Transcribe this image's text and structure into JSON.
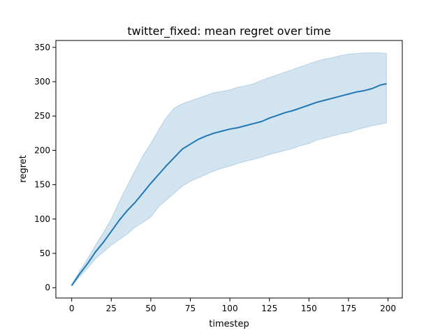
{
  "chart_data": {
    "type": "line",
    "title": "twitter_fixed: mean regret over time",
    "xlabel": "timestep",
    "ylabel": "regret",
    "xlim": [
      -10,
      209
    ],
    "ylim": [
      -15,
      360
    ],
    "xticks": [
      0,
      25,
      50,
      75,
      100,
      125,
      150,
      175,
      200
    ],
    "yticks": [
      0,
      50,
      100,
      150,
      200,
      250,
      300,
      350
    ],
    "grid": false,
    "legend": "none",
    "series": [
      {
        "color": "#1f77b4",
        "band_color": "#1f77b4",
        "x": [
          0,
          5,
          10,
          15,
          20,
          25,
          30,
          35,
          40,
          45,
          50,
          55,
          60,
          65,
          70,
          75,
          80,
          85,
          90,
          95,
          100,
          105,
          110,
          115,
          120,
          125,
          130,
          135,
          140,
          145,
          150,
          155,
          160,
          165,
          170,
          175,
          180,
          185,
          190,
          195,
          199
        ],
        "mean": [
          3,
          20,
          35,
          52,
          66,
          82,
          98,
          112,
          124,
          138,
          152,
          165,
          178,
          190,
          202,
          209,
          216,
          221,
          225,
          228,
          231,
          233,
          236,
          239,
          242,
          247,
          251,
          255,
          258,
          262,
          266,
          270,
          273,
          276,
          279,
          282,
          285,
          287,
          290,
          295,
          297
        ],
        "lower": [
          3,
          16,
          28,
          42,
          52,
          62,
          70,
          78,
          88,
          95,
          103,
          118,
          128,
          138,
          148,
          155,
          160,
          165,
          170,
          174,
          177,
          181,
          184,
          187,
          190,
          194,
          197,
          200,
          203,
          207,
          210,
          215,
          218,
          221,
          224,
          226,
          230,
          233,
          236,
          238,
          240
        ],
        "upper": [
          5,
          24,
          42,
          62,
          80,
          100,
          125,
          148,
          170,
          192,
          210,
          230,
          248,
          262,
          268,
          272,
          276,
          280,
          284,
          286,
          288,
          292,
          294,
          297,
          302,
          306,
          310,
          314,
          318,
          322,
          326,
          330,
          333,
          335,
          338,
          340,
          341,
          342,
          342,
          342,
          341
        ]
      }
    ]
  }
}
